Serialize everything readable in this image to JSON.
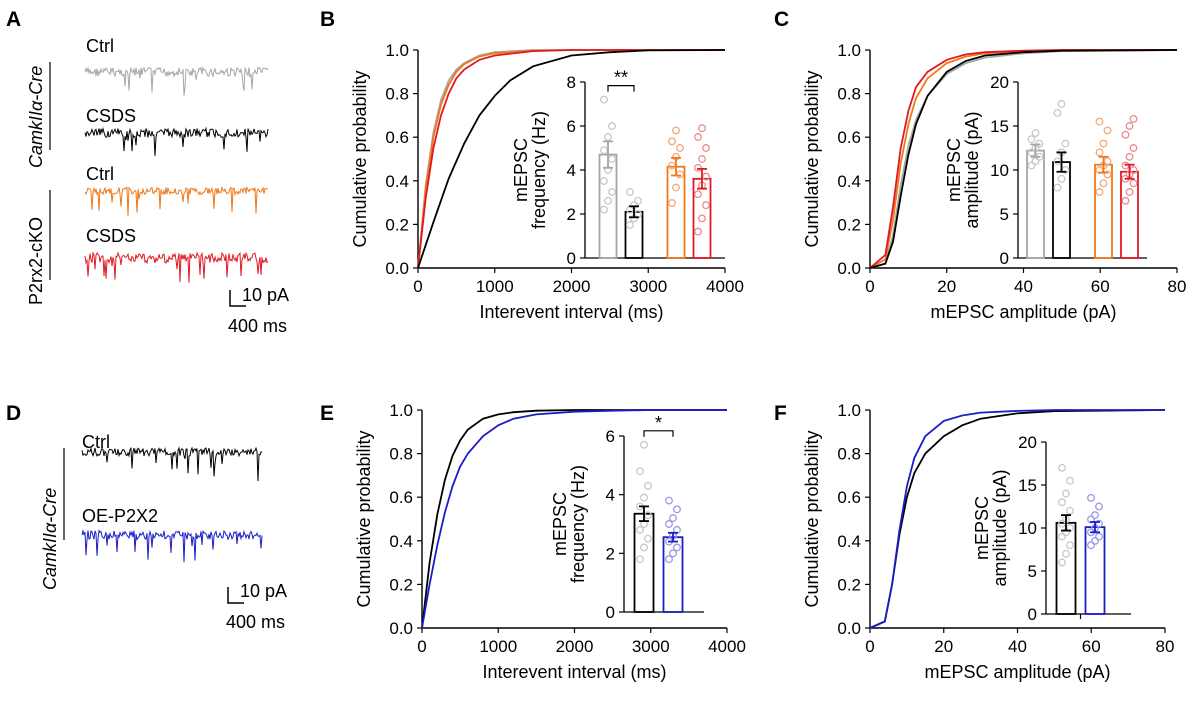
{
  "colors": {
    "ctrl_gray": "#a6a6a6",
    "csds_black": "#000000",
    "p2_ctrl_orange": "#f07818",
    "p2_csds_red": "#e01a24",
    "oe_blue": "#1c1cc8",
    "light_blue": "#9a9ae6",
    "light_gray": "#c8c8c8",
    "light_orange": "#f4a97a",
    "light_red": "#ee8a8f"
  },
  "panels": {
    "A": {
      "letter": "A",
      "group1": "CamkIIα-Cre",
      "group2": "P2rx2-cKO",
      "trace_labels": [
        "Ctrl",
        "CSDS",
        "Ctrl",
        "CSDS"
      ],
      "scale_y": "10 pA",
      "scale_x": "400 ms"
    },
    "B": {
      "letter": "B"
    },
    "C": {
      "letter": "C"
    },
    "D": {
      "letter": "D",
      "group": "CamkIIα-Cre",
      "trace_labels": [
        "Ctrl",
        "OE-P2X2"
      ],
      "scale_y": "10 pA",
      "scale_x": "400 ms"
    },
    "E": {
      "letter": "E"
    },
    "F": {
      "letter": "F"
    }
  },
  "chart_data": [
    {
      "id": "B",
      "type": "line",
      "xlabel": "Interevent interval (ms)",
      "ylabel": "Cumulative probability",
      "xlim": [
        0,
        4000
      ],
      "ylim": [
        0,
        1
      ],
      "xticks": [
        0,
        1000,
        2000,
        3000,
        4000
      ],
      "yticks": [
        0.0,
        0.2,
        0.4,
        0.6,
        0.8,
        1.0
      ],
      "series": [
        {
          "name": "CamkIIα-Cre Ctrl",
          "color": "#a6a6a6",
          "x": [
            0,
            100,
            200,
            300,
            400,
            500,
            600,
            800,
            1000,
            1500,
            2000,
            4000
          ],
          "y": [
            0,
            0.38,
            0.62,
            0.77,
            0.86,
            0.91,
            0.94,
            0.975,
            0.99,
            1.0,
            1.0,
            1.0
          ]
        },
        {
          "name": "P2rx2-cKO Ctrl",
          "color": "#f07818",
          "x": [
            0,
            100,
            200,
            300,
            400,
            500,
            600,
            800,
            1000,
            1500,
            2000,
            4000
          ],
          "y": [
            0,
            0.36,
            0.6,
            0.75,
            0.84,
            0.9,
            0.935,
            0.97,
            0.985,
            0.997,
            1.0,
            1.0
          ]
        },
        {
          "name": "P2rx2-cKO CSDS",
          "color": "#e01a24",
          "x": [
            0,
            100,
            200,
            300,
            400,
            500,
            600,
            800,
            1000,
            1500,
            2000,
            4000
          ],
          "y": [
            0,
            0.32,
            0.55,
            0.7,
            0.8,
            0.87,
            0.91,
            0.955,
            0.975,
            0.995,
            1.0,
            1.0
          ]
        },
        {
          "name": "CamkIIα-Cre CSDS",
          "color": "#000000",
          "x": [
            0,
            200,
            400,
            600,
            800,
            1000,
            1200,
            1500,
            2000,
            2500,
            3000,
            4000
          ],
          "y": [
            0,
            0.21,
            0.41,
            0.57,
            0.7,
            0.79,
            0.86,
            0.925,
            0.975,
            0.99,
            0.998,
            1.0
          ]
        }
      ],
      "inset": {
        "ylabel": "mEPSC frequency (Hz)",
        "ylim": [
          0,
          8
        ],
        "yticks": [
          0,
          2,
          4,
          6,
          8
        ],
        "bars": [
          {
            "name": "Ctrl",
            "value": 4.7,
            "sem": 0.6,
            "color": "#a6a6a6",
            "dot_color": "#c8c8c8",
            "points": [
              2.2,
              2.6,
              3.0,
              3.5,
              4.0,
              4.5,
              4.9,
              5.5,
              6.0,
              7.2
            ]
          },
          {
            "name": "CSDS",
            "value": 2.1,
            "sem": 0.25,
            "color": "#000000",
            "dot_color": "#c8c8c8",
            "points": [
              1.5,
              1.8,
              2.0,
              2.2,
              2.4,
              2.6,
              3.0
            ]
          },
          {
            "name": "Ctrl",
            "value": 4.15,
            "sem": 0.4,
            "color": "#f07818",
            "dot_color": "#f4a97a",
            "points": [
              2.5,
              3.2,
              3.8,
              4.2,
              4.6,
              5.0,
              5.3,
              5.8
            ]
          },
          {
            "name": "CSDS",
            "value": 3.6,
            "sem": 0.45,
            "color": "#e01a24",
            "dot_color": "#ee8a8f",
            "points": [
              1.2,
              1.8,
              2.4,
              2.9,
              3.3,
              3.7,
              4.1,
              4.5,
              5.0,
              5.5,
              5.9
            ]
          }
        ],
        "significance": "**"
      }
    },
    {
      "id": "C",
      "type": "line",
      "xlabel": "mEPSC amplitude (pA)",
      "ylabel": "Cumulative probability",
      "xlim": [
        0,
        80
      ],
      "ylim": [
        0,
        1
      ],
      "xticks": [
        0,
        20,
        40,
        60,
        80
      ],
      "yticks": [
        0.0,
        0.2,
        0.4,
        0.6,
        0.8,
        1.0
      ],
      "series": [
        {
          "name": "CamkIIα-Cre Ctrl",
          "color": "#a6a6a6",
          "x": [
            0,
            4,
            6,
            8,
            10,
            12,
            15,
            20,
            25,
            30,
            40,
            50,
            80
          ],
          "y": [
            0,
            0.02,
            0.15,
            0.38,
            0.56,
            0.68,
            0.79,
            0.89,
            0.94,
            0.965,
            0.985,
            0.995,
            1.0
          ]
        },
        {
          "name": "P2rx2-cKO Ctrl",
          "color": "#f07818",
          "x": [
            0,
            4,
            6,
            8,
            10,
            12,
            15,
            20,
            25,
            30,
            40,
            50,
            80
          ],
          "y": [
            0,
            0.04,
            0.22,
            0.48,
            0.66,
            0.78,
            0.87,
            0.94,
            0.97,
            0.985,
            0.996,
            1.0,
            1.0
          ]
        },
        {
          "name": "P2rx2-cKO CSDS",
          "color": "#e01a24",
          "x": [
            0,
            4,
            6,
            8,
            10,
            12,
            15,
            20,
            25,
            30,
            40,
            50,
            80
          ],
          "y": [
            0,
            0.06,
            0.28,
            0.55,
            0.72,
            0.83,
            0.9,
            0.955,
            0.98,
            0.99,
            0.997,
            1.0,
            1.0
          ]
        },
        {
          "name": "CamkIIα-Cre CSDS",
          "color": "#000000",
          "x": [
            0,
            4,
            6,
            8,
            10,
            12,
            15,
            20,
            25,
            30,
            40,
            50,
            80
          ],
          "y": [
            0,
            0.02,
            0.12,
            0.33,
            0.52,
            0.66,
            0.79,
            0.9,
            0.95,
            0.975,
            0.99,
            0.997,
            1.0
          ]
        }
      ],
      "inset": {
        "ylabel": "mEPSC amplitude (pA)",
        "ylim": [
          0,
          20
        ],
        "yticks": [
          0,
          5,
          10,
          15,
          20
        ],
        "bars": [
          {
            "name": "Ctrl",
            "value": 12.2,
            "sem": 0.7,
            "color": "#a6a6a6",
            "dot_color": "#c8c8c8",
            "points": [
              10.5,
              11.0,
              11.5,
              12.0,
              12.5,
              13.0,
              13.5,
              14.2
            ]
          },
          {
            "name": "CSDS",
            "value": 10.9,
            "sem": 1.1,
            "color": "#000000",
            "dot_color": "#c8c8c8",
            "points": [
              8.0,
              9.0,
              10.0,
              11.0,
              12.0,
              13.0,
              16.5,
              17.5
            ]
          },
          {
            "name": "Ctrl",
            "value": 10.6,
            "sem": 0.9,
            "color": "#f07818",
            "dot_color": "#f4a97a",
            "points": [
              7.5,
              8.5,
              9.5,
              10.0,
              10.5,
              11.0,
              12.0,
              13.0,
              14.5,
              15.5
            ]
          },
          {
            "name": "CSDS",
            "value": 9.8,
            "sem": 0.8,
            "color": "#e01a24",
            "dot_color": "#ee8a8f",
            "points": [
              6.5,
              7.5,
              8.5,
              9.0,
              9.5,
              10.0,
              10.5,
              11.5,
              12.5,
              14.0,
              15.0,
              15.8
            ]
          }
        ]
      }
    },
    {
      "id": "E",
      "type": "line",
      "xlabel": "Interevent interval (ms)",
      "ylabel": "Cumulative probability",
      "xlim": [
        0,
        4000
      ],
      "ylim": [
        0,
        1
      ],
      "xticks": [
        0,
        1000,
        2000,
        3000,
        4000
      ],
      "yticks": [
        0.0,
        0.2,
        0.4,
        0.6,
        0.8,
        1.0
      ],
      "series": [
        {
          "name": "Ctrl",
          "color": "#000000",
          "x": [
            0,
            100,
            200,
            300,
            400,
            500,
            600,
            800,
            1000,
            1200,
            1500,
            2000,
            4000
          ],
          "y": [
            0,
            0.3,
            0.52,
            0.68,
            0.79,
            0.86,
            0.91,
            0.96,
            0.98,
            0.99,
            0.997,
            1.0,
            1.0
          ]
        },
        {
          "name": "OE-P2X2",
          "color": "#1c1cc8",
          "x": [
            0,
            100,
            200,
            300,
            400,
            500,
            600,
            800,
            1000,
            1200,
            1500,
            2000,
            2500,
            3000,
            4000
          ],
          "y": [
            0,
            0.2,
            0.38,
            0.53,
            0.65,
            0.74,
            0.8,
            0.88,
            0.93,
            0.96,
            0.98,
            0.992,
            0.997,
            1.0,
            1.0
          ]
        }
      ],
      "inset": {
        "ylabel": "mEPSC frequency (Hz)",
        "ylim": [
          0,
          6
        ],
        "yticks": [
          0,
          2,
          4,
          6
        ],
        "bars": [
          {
            "name": "Ctrl",
            "value": 3.35,
            "sem": 0.25,
            "color": "#000000",
            "dot_color": "#c8c8c8",
            "points": [
              1.8,
              2.2,
              2.5,
              2.8,
              3.0,
              3.3,
              3.6,
              3.9,
              4.3,
              4.8,
              5.7
            ]
          },
          {
            "name": "OE-P2X2",
            "value": 2.55,
            "sem": 0.15,
            "color": "#1c1cc8",
            "dot_color": "#9a9ae6",
            "points": [
              1.8,
              2.0,
              2.2,
              2.4,
              2.6,
              2.8,
              3.0,
              3.2,
              3.5,
              3.8
            ]
          }
        ],
        "significance": "*"
      }
    },
    {
      "id": "F",
      "type": "line",
      "xlabel": "mEPSC amplitude (pA)",
      "ylabel": "Cumulative probability",
      "xlim": [
        0,
        80
      ],
      "ylim": [
        0,
        1
      ],
      "xticks": [
        0,
        20,
        40,
        60,
        80
      ],
      "yticks": [
        0.0,
        0.2,
        0.4,
        0.6,
        0.8,
        1.0
      ],
      "series": [
        {
          "name": "Ctrl",
          "color": "#000000",
          "x": [
            0,
            4,
            6,
            8,
            10,
            12,
            15,
            20,
            25,
            30,
            40,
            50,
            80
          ],
          "y": [
            0,
            0.03,
            0.2,
            0.43,
            0.6,
            0.71,
            0.8,
            0.88,
            0.93,
            0.96,
            0.985,
            0.995,
            1.0
          ]
        },
        {
          "name": "OE-P2X2",
          "color": "#1c1cc8",
          "x": [
            0,
            4,
            6,
            8,
            10,
            12,
            15,
            20,
            25,
            30,
            40,
            50,
            80
          ],
          "y": [
            0,
            0.03,
            0.2,
            0.45,
            0.65,
            0.78,
            0.88,
            0.95,
            0.975,
            0.988,
            0.996,
            1.0,
            1.0
          ]
        }
      ],
      "inset": {
        "ylabel": "mEPSC amplitude (pA)",
        "ylim": [
          0,
          20
        ],
        "yticks": [
          0,
          5,
          10,
          15,
          20
        ],
        "bars": [
          {
            "name": "Ctrl",
            "value": 10.6,
            "sem": 0.9,
            "color": "#000000",
            "dot_color": "#c8c8c8",
            "points": [
              6.0,
              7.0,
              8.0,
              9.0,
              9.5,
              10.0,
              10.5,
              11.0,
              12.0,
              13.0,
              14.0,
              15.5,
              17.0
            ]
          },
          {
            "name": "OE-P2X2",
            "value": 10.1,
            "sem": 0.6,
            "color": "#1c1cc8",
            "dot_color": "#9a9ae6",
            "points": [
              8.0,
              8.5,
              9.0,
              9.5,
              10.0,
              10.5,
              11.0,
              11.5,
              12.5,
              13.5
            ]
          }
        ],
        "xticks": [
          60
        ]
      }
    }
  ]
}
